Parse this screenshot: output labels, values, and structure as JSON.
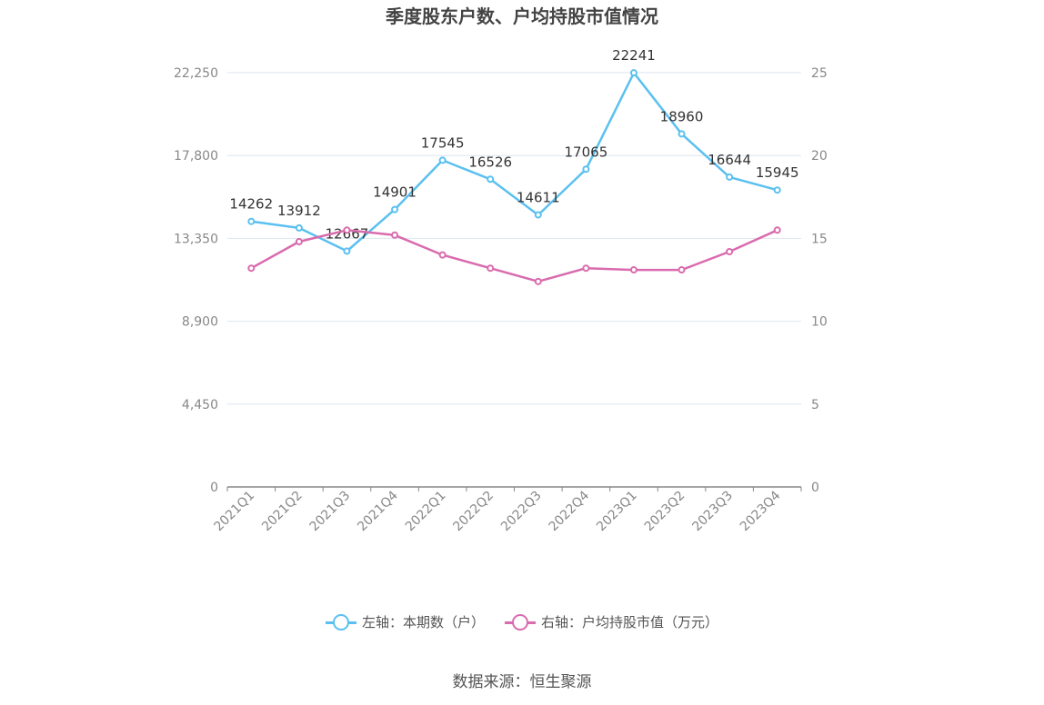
{
  "title": "季度股东户数、户均持股市值情况",
  "source": "数据来源：恒生聚源",
  "colors": {
    "left": "#5bc0f0",
    "right": "#d96bae",
    "grid": "#dde6f0",
    "axis": "#888888"
  },
  "chart_data": {
    "type": "line",
    "categories": [
      "2021Q1",
      "2021Q2",
      "2021Q3",
      "2021Q4",
      "2022Q1",
      "2022Q2",
      "2022Q3",
      "2022Q4",
      "2023Q1",
      "2023Q2",
      "2023Q3",
      "2023Q4"
    ],
    "y_left": {
      "ticks": [
        "0",
        "4,450",
        "8,900",
        "13,350",
        "17,800",
        "22,250"
      ],
      "ylim": [
        0,
        22250
      ]
    },
    "y_right": {
      "ticks": [
        "0",
        "5",
        "10",
        "15",
        "20",
        "25"
      ],
      "ylim": [
        0,
        25
      ]
    },
    "grid": true,
    "legend_position": "bottom",
    "series": [
      {
        "name": "左轴：本期数（户）",
        "axis": "left",
        "show_labels": true,
        "values": [
          14262,
          13912,
          12667,
          14901,
          17545,
          16526,
          14611,
          17065,
          22241,
          18960,
          16644,
          15945
        ]
      },
      {
        "name": "右轴：户均持股市值（万元）",
        "axis": "right",
        "show_labels": false,
        "values": [
          13.2,
          14.8,
          15.5,
          15.2,
          14.0,
          13.2,
          12.4,
          13.2,
          13.1,
          13.1,
          14.2,
          15.5
        ]
      }
    ]
  }
}
